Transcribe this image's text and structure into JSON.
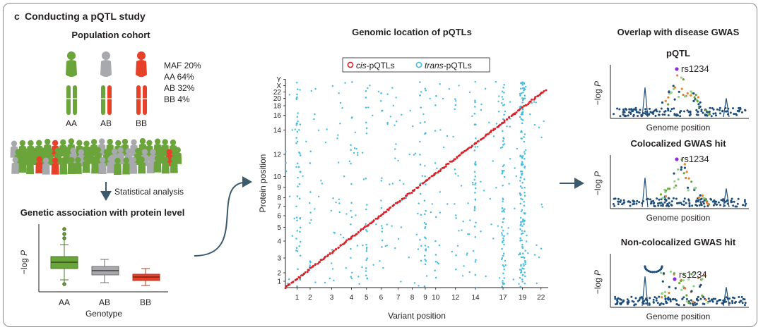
{
  "panel": {
    "letter": "c",
    "title": "Conducting a pQTL study"
  },
  "cohort": {
    "title": "Population cohort",
    "stats": [
      "MAF 20%",
      "AA 64%",
      "AB 32%",
      "BB 4%"
    ],
    "genotypes": [
      "AA",
      "AB",
      "BB"
    ],
    "colors": {
      "AA": "#6aa43a",
      "AB": "#a7a9ac",
      "BB": "#e8412a"
    }
  },
  "arrow_label": "Statistical analysis",
  "association": {
    "title": "Genetic association with protein level",
    "y_label": "−log ",
    "y_label_var": "P",
    "x_label": "Genotype",
    "categories": [
      "AA",
      "AB",
      "BB"
    ]
  },
  "map": {
    "title": "Genomic location of pQTLs",
    "legend": [
      {
        "prefix": "",
        "italic": "cis",
        "suffix": "-pQTLs",
        "color": "#d8232a"
      },
      {
        "prefix": "",
        "italic": "trans",
        "suffix": "-pQTLs",
        "color": "#46bde0"
      }
    ],
    "x_label": "Variant position",
    "y_label": "Protein position",
    "x_ticks": [
      "1",
      "2",
      "3",
      "4",
      "5",
      "6",
      "7",
      "8",
      "9",
      "10",
      "12",
      "14",
      "17",
      "19",
      "22"
    ],
    "y_ticks": [
      "Y",
      "X",
      "22",
      "20",
      "18",
      "16",
      "14",
      "12",
      "10",
      "9",
      "8",
      "7",
      "6",
      "5",
      "4",
      "3",
      "2",
      "1"
    ]
  },
  "gwas": {
    "title": "Overlap with disease GWAS",
    "plots": [
      {
        "title": "pQTL",
        "snp": "rs1234",
        "x_label": "Genome position"
      },
      {
        "title": "Colocalized GWAS hit",
        "snp": "rs1234",
        "x_label": "Genome position"
      },
      {
        "title": "Non-colocalized GWAS hit",
        "snp": "rs1234",
        "x_label": "Genome position"
      }
    ],
    "y_label": "−log ",
    "y_label_var": "P"
  }
}
